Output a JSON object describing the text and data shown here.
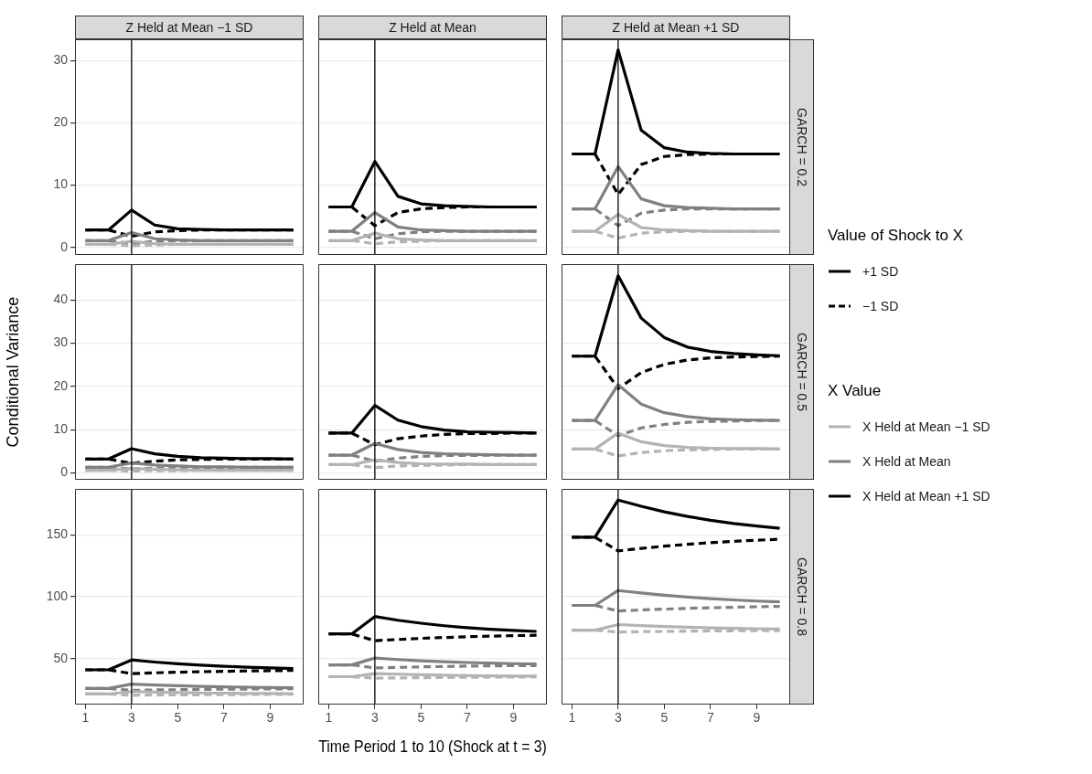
{
  "chart_data": [
    {
      "type": "line",
      "title": "Z Held at Mean −1 SD",
      "x": [
        1,
        2,
        3,
        4,
        5,
        6,
        7,
        8,
        9,
        10
      ],
      "xlim": [
        0.55,
        10.45
      ],
      "xticks": [
        1,
        3,
        5,
        7,
        9
      ],
      "ylim": [
        -1.2,
        33.4
      ],
      "yticks": [
        0,
        10,
        20,
        30
      ],
      "grid": "y",
      "tick_labels": "y",
      "ref_lines": [
        {
          "axis": "x",
          "value": 3
        }
      ],
      "series": [
        {
          "color": "#b3b3b3",
          "line_style": "solid",
          "values": [
            0.5,
            0.5,
            1.0,
            0.6,
            0.5,
            0.5,
            0.5,
            0.5,
            0.5,
            0.5
          ]
        },
        {
          "color": "#b3b3b3",
          "line_style": "dashed",
          "values": [
            0.5,
            0.5,
            0.3,
            0.4,
            0.5,
            0.5,
            0.5,
            0.5,
            0.5,
            0.5
          ]
        },
        {
          "color": "#808080",
          "line_style": "solid",
          "values": [
            1.1,
            1.1,
            2.4,
            1.4,
            1.2,
            1.1,
            1.1,
            1.1,
            1.1,
            1.1
          ]
        },
        {
          "color": "#808080",
          "line_style": "dashed",
          "values": [
            1.1,
            1.1,
            0.6,
            1.0,
            1.1,
            1.1,
            1.1,
            1.1,
            1.1,
            1.1
          ]
        },
        {
          "color": "#000000",
          "line_style": "solid",
          "values": [
            2.8,
            2.8,
            6.0,
            3.6,
            3.0,
            2.9,
            2.8,
            2.8,
            2.8,
            2.8
          ]
        },
        {
          "color": "#000000",
          "line_style": "dashed",
          "values": [
            2.8,
            2.8,
            1.8,
            2.5,
            2.7,
            2.8,
            2.8,
            2.8,
            2.8,
            2.8
          ]
        }
      ]
    },
    {
      "type": "line",
      "title": "Z Held at Mean",
      "x": [
        1,
        2,
        3,
        4,
        5,
        6,
        7,
        8,
        9,
        10
      ],
      "xlim": [
        0.55,
        10.45
      ],
      "xticks": [
        1,
        3,
        5,
        7,
        9
      ],
      "ylim": [
        -1.2,
        33.4
      ],
      "yticks": [
        0,
        10,
        20,
        30
      ],
      "grid": "y",
      "tick_labels": false,
      "ref_lines": [
        {
          "axis": "x",
          "value": 3
        }
      ],
      "series": [
        {
          "color": "#b3b3b3",
          "line_style": "solid",
          "values": [
            1.1,
            1.1,
            2.3,
            1.4,
            1.2,
            1.1,
            1.1,
            1.1,
            1.1,
            1.1
          ]
        },
        {
          "color": "#b3b3b3",
          "line_style": "dashed",
          "values": [
            1.1,
            1.1,
            0.6,
            0.9,
            1.0,
            1.1,
            1.1,
            1.1,
            1.1,
            1.1
          ]
        },
        {
          "color": "#808080",
          "line_style": "solid",
          "values": [
            2.6,
            2.6,
            5.6,
            3.3,
            2.8,
            2.7,
            2.6,
            2.6,
            2.6,
            2.6
          ]
        },
        {
          "color": "#808080",
          "line_style": "dashed",
          "values": [
            2.6,
            2.6,
            1.4,
            2.2,
            2.5,
            2.6,
            2.6,
            2.6,
            2.6,
            2.6
          ]
        },
        {
          "color": "#000000",
          "line_style": "solid",
          "values": [
            6.5,
            6.5,
            13.8,
            8.2,
            7.0,
            6.7,
            6.6,
            6.5,
            6.5,
            6.5
          ]
        },
        {
          "color": "#000000",
          "line_style": "dashed",
          "values": [
            6.5,
            6.5,
            3.5,
            5.6,
            6.2,
            6.4,
            6.5,
            6.5,
            6.5,
            6.5
          ]
        }
      ]
    },
    {
      "type": "line",
      "title": "Z Held at Mean +1 SD",
      "y2label": "GARCH = 0.2",
      "x": [
        1,
        2,
        3,
        4,
        5,
        6,
        7,
        8,
        9,
        10
      ],
      "xlim": [
        0.55,
        10.45
      ],
      "xticks": [
        1,
        3,
        5,
        7,
        9
      ],
      "ylim": [
        -1.2,
        33.4
      ],
      "yticks": [
        0,
        10,
        20,
        30
      ],
      "grid": "y",
      "tick_labels": false,
      "ref_lines": [
        {
          "axis": "x",
          "value": 3
        }
      ],
      "series": [
        {
          "color": "#b3b3b3",
          "line_style": "solid",
          "values": [
            2.6,
            2.6,
            5.3,
            3.2,
            2.8,
            2.7,
            2.6,
            2.6,
            2.6,
            2.6
          ]
        },
        {
          "color": "#b3b3b3",
          "line_style": "dashed",
          "values": [
            2.6,
            2.6,
            1.5,
            2.3,
            2.5,
            2.6,
            2.6,
            2.6,
            2.6,
            2.6
          ]
        },
        {
          "color": "#808080",
          "line_style": "solid",
          "values": [
            6.2,
            6.2,
            13,
            7.8,
            6.7,
            6.4,
            6.3,
            6.2,
            6.2,
            6.2
          ]
        },
        {
          "color": "#808080",
          "line_style": "dashed",
          "values": [
            6.2,
            6.2,
            3.5,
            5.5,
            6.0,
            6.2,
            6.2,
            6.2,
            6.2,
            6.2
          ]
        },
        {
          "color": "#000000",
          "line_style": "solid",
          "values": [
            15,
            15,
            31.7,
            18.8,
            16.0,
            15.3,
            15.1,
            15,
            15,
            15
          ]
        },
        {
          "color": "#000000",
          "line_style": "dashed",
          "values": [
            15,
            15,
            8.5,
            13.3,
            14.6,
            14.9,
            15,
            15,
            15,
            15
          ]
        }
      ]
    },
    {
      "type": "line",
      "ylabel": "Conditional Variance",
      "x": [
        1,
        2,
        3,
        4,
        5,
        6,
        7,
        8,
        9,
        10
      ],
      "xlim": [
        0.55,
        10.45
      ],
      "xticks": [
        1,
        3,
        5,
        7,
        9
      ],
      "ylim": [
        -1.6,
        48.3
      ],
      "yticks": [
        0,
        10,
        20,
        30,
        40
      ],
      "grid": "y",
      "tick_labels": "y",
      "ref_lines": [
        {
          "axis": "x",
          "value": 3
        }
      ],
      "series": [
        {
          "color": "#b3b3b3",
          "line_style": "solid",
          "values": [
            0.6,
            0.6,
            1.0,
            0.8,
            0.7,
            0.6,
            0.6,
            0.6,
            0.6,
            0.6
          ]
        },
        {
          "color": "#b3b3b3",
          "line_style": "dashed",
          "values": [
            0.6,
            0.6,
            0.4,
            0.5,
            0.5,
            0.6,
            0.6,
            0.6,
            0.6,
            0.6
          ]
        },
        {
          "color": "#808080",
          "line_style": "solid",
          "values": [
            1.3,
            1.3,
            2.3,
            1.8,
            1.6,
            1.4,
            1.4,
            1.3,
            1.3,
            1.3
          ]
        },
        {
          "color": "#808080",
          "line_style": "dashed",
          "values": [
            1.3,
            1.3,
            0.9,
            1.1,
            1.2,
            1.3,
            1.3,
            1.3,
            1.3,
            1.3
          ]
        },
        {
          "color": "#000000",
          "line_style": "solid",
          "values": [
            3.2,
            3.2,
            5.6,
            4.4,
            3.8,
            3.5,
            3.4,
            3.3,
            3.3,
            3.2
          ]
        },
        {
          "color": "#000000",
          "line_style": "dashed",
          "values": [
            3.2,
            3.2,
            2.2,
            2.7,
            3.0,
            3.1,
            3.2,
            3.2,
            3.2,
            3.2
          ]
        }
      ]
    },
    {
      "type": "line",
      "x": [
        1,
        2,
        3,
        4,
        5,
        6,
        7,
        8,
        9,
        10
      ],
      "xlim": [
        0.55,
        10.45
      ],
      "xticks": [
        1,
        3,
        5,
        7,
        9
      ],
      "ylim": [
        -1.6,
        48.3
      ],
      "yticks": [
        0,
        10,
        20,
        30,
        40
      ],
      "grid": "y",
      "tick_labels": false,
      "ref_lines": [
        {
          "axis": "x",
          "value": 3
        }
      ],
      "series": [
        {
          "color": "#b3b3b3",
          "line_style": "solid",
          "values": [
            1.9,
            1.9,
            3.0,
            2.4,
            2.1,
            2.0,
            2.0,
            1.9,
            1.9,
            1.9
          ]
        },
        {
          "color": "#b3b3b3",
          "line_style": "dashed",
          "values": [
            1.9,
            1.9,
            1.2,
            1.6,
            1.7,
            1.8,
            1.9,
            1.9,
            1.9,
            1.9
          ]
        },
        {
          "color": "#808080",
          "line_style": "solid",
          "values": [
            4.1,
            4.1,
            6.8,
            5.4,
            4.7,
            4.4,
            4.3,
            4.2,
            4.1,
            4.1
          ]
        },
        {
          "color": "#808080",
          "line_style": "dashed",
          "values": [
            4.1,
            4.1,
            2.7,
            3.4,
            3.8,
            4.0,
            4.0,
            4.1,
            4.1,
            4.1
          ]
        },
        {
          "color": "#000000",
          "line_style": "solid",
          "values": [
            9.2,
            9.2,
            15.6,
            12.2,
            10.7,
            9.9,
            9.5,
            9.4,
            9.3,
            9.2
          ]
        },
        {
          "color": "#000000",
          "line_style": "dashed",
          "values": [
            9.2,
            9.2,
            6.5,
            7.9,
            8.5,
            8.9,
            9.1,
            9.1,
            9.2,
            9.2
          ]
        }
      ]
    },
    {
      "type": "line",
      "y2label": "GARCH = 0.5",
      "x": [
        1,
        2,
        3,
        4,
        5,
        6,
        7,
        8,
        9,
        10
      ],
      "xlim": [
        0.55,
        10.45
      ],
      "xticks": [
        1,
        3,
        5,
        7,
        9
      ],
      "ylim": [
        -1.6,
        48.3
      ],
      "yticks": [
        0,
        10,
        20,
        30,
        40
      ],
      "grid": "y",
      "tick_labels": false,
      "ref_lines": [
        {
          "axis": "x",
          "value": 3
        }
      ],
      "series": [
        {
          "color": "#b3b3b3",
          "line_style": "solid",
          "values": [
            5.5,
            5.5,
            9.2,
            7.2,
            6.3,
            5.9,
            5.7,
            5.6,
            5.6,
            5.5
          ]
        },
        {
          "color": "#b3b3b3",
          "line_style": "dashed",
          "values": [
            5.5,
            5.5,
            3.9,
            4.7,
            5.1,
            5.3,
            5.4,
            5.5,
            5.5,
            5.5
          ]
        },
        {
          "color": "#808080",
          "line_style": "solid",
          "values": [
            12.1,
            12.1,
            20.4,
            15.9,
            13.9,
            13.0,
            12.5,
            12.3,
            12.2,
            12.1
          ]
        },
        {
          "color": "#808080",
          "line_style": "dashed",
          "values": [
            12.1,
            12.1,
            8.6,
            10.4,
            11.2,
            11.7,
            11.9,
            12.0,
            12.1,
            12.1
          ]
        },
        {
          "color": "#000000",
          "line_style": "solid",
          "values": [
            27,
            27,
            45.6,
            35.8,
            31.3,
            29.1,
            28.1,
            27.6,
            27.3,
            27.1
          ]
        },
        {
          "color": "#000000",
          "line_style": "dashed",
          "values": [
            27,
            27,
            19.5,
            23.2,
            25.1,
            26.1,
            26.6,
            26.8,
            26.9,
            27
          ]
        }
      ]
    },
    {
      "type": "line",
      "x": [
        1,
        2,
        3,
        4,
        5,
        6,
        7,
        8,
        9,
        10
      ],
      "xlim": [
        0.55,
        10.45
      ],
      "xticks": [
        1,
        3,
        5,
        7,
        9
      ],
      "ylim": [
        13,
        187
      ],
      "yticks": [
        50,
        100,
        150
      ],
      "grid": "y",
      "ref_lines": [
        {
          "axis": "x",
          "value": 3
        }
      ],
      "series": [
        {
          "color": "#b3b3b3",
          "line_style": "solid",
          "values": [
            21.5,
            21.5,
            23.5,
            23,
            22.7,
            22.4,
            22.2,
            22,
            21.9,
            21.8
          ]
        },
        {
          "color": "#b3b3b3",
          "line_style": "dashed",
          "values": [
            21.5,
            21.5,
            20.5,
            20.7,
            20.8,
            20.9,
            21,
            21.1,
            21.2,
            21.3
          ]
        },
        {
          "color": "#808080",
          "line_style": "solid",
          "values": [
            26,
            26,
            29.5,
            28.8,
            28.2,
            27.7,
            27.3,
            27,
            26.8,
            26.6
          ]
        },
        {
          "color": "#808080",
          "line_style": "dashed",
          "values": [
            26,
            26,
            24.5,
            24.8,
            25,
            25.2,
            25.4,
            25.5,
            25.6,
            25.7
          ]
        },
        {
          "color": "#000000",
          "line_style": "solid",
          "values": [
            41,
            41,
            49,
            47.3,
            45.9,
            44.8,
            43.9,
            43.2,
            42.6,
            42.1
          ]
        },
        {
          "color": "#000000",
          "line_style": "dashed",
          "values": [
            41,
            41,
            38,
            38.6,
            39.1,
            39.5,
            39.8,
            40.1,
            40.3,
            40.5
          ]
        }
      ]
    },
    {
      "type": "line",
      "xlabel": "Time Period 1 to 10 (Shock at t = 3)",
      "x": [
        1,
        2,
        3,
        4,
        5,
        6,
        7,
        8,
        9,
        10
      ],
      "xlim": [
        0.55,
        10.45
      ],
      "xticks": [
        1,
        3,
        5,
        7,
        9
      ],
      "ylim": [
        13,
        187
      ],
      "yticks": [
        50,
        100,
        150
      ],
      "grid": "y",
      "tick_labels": "x",
      "ref_lines": [
        {
          "axis": "x",
          "value": 3
        }
      ],
      "series": [
        {
          "color": "#b3b3b3",
          "line_style": "solid",
          "values": [
            35.5,
            35.5,
            38,
            37.5,
            37.1,
            36.7,
            36.4,
            36.2,
            36,
            35.9
          ]
        },
        {
          "color": "#b3b3b3",
          "line_style": "dashed",
          "values": [
            35.5,
            35.5,
            34.3,
            34.5,
            34.7,
            34.9,
            35,
            35.1,
            35.2,
            35.3
          ]
        },
        {
          "color": "#808080",
          "line_style": "solid",
          "values": [
            45,
            45,
            50.5,
            49.3,
            48.3,
            47.5,
            46.9,
            46.4,
            46,
            45.7
          ]
        },
        {
          "color": "#808080",
          "line_style": "dashed",
          "values": [
            45,
            45,
            42.5,
            43,
            43.4,
            43.7,
            44,
            44.2,
            44.4,
            44.5
          ]
        },
        {
          "color": "#000000",
          "line_style": "solid",
          "values": [
            70,
            70,
            84,
            81,
            78.6,
            76.6,
            75,
            73.8,
            72.8,
            72
          ]
        },
        {
          "color": "#000000",
          "line_style": "dashed",
          "values": [
            70,
            70,
            64.5,
            65.5,
            66.4,
            67.1,
            67.7,
            68.2,
            68.6,
            68.9
          ]
        }
      ]
    },
    {
      "type": "line",
      "y2label": "GARCH = 0.8",
      "x": [
        1,
        2,
        3,
        4,
        5,
        6,
        7,
        8,
        9,
        10
      ],
      "xlim": [
        0.55,
        10.45
      ],
      "xticks": [
        1,
        3,
        5,
        7,
        9
      ],
      "ylim": [
        13,
        187
      ],
      "yticks": [
        50,
        100,
        150
      ],
      "grid": "y",
      "tick_labels": "x",
      "ref_lines": [
        {
          "axis": "x",
          "value": 3
        }
      ],
      "series": [
        {
          "color": "#b3b3b3",
          "line_style": "solid",
          "values": [
            73,
            73,
            77.5,
            76.7,
            76,
            75.4,
            74.9,
            74.5,
            74.2,
            73.9
          ]
        },
        {
          "color": "#b3b3b3",
          "line_style": "dashed",
          "values": [
            73,
            73,
            71.5,
            71.8,
            72,
            72.2,
            72.4,
            72.5,
            72.6,
            72.7
          ]
        },
        {
          "color": "#808080",
          "line_style": "solid",
          "values": [
            93,
            93,
            105,
            103,
            101.2,
            99.7,
            98.4,
            97.4,
            96.5,
            95.8
          ]
        },
        {
          "color": "#808080",
          "line_style": "dashed",
          "values": [
            93,
            93,
            88.5,
            89.3,
            90,
            90.6,
            91.1,
            91.5,
            91.9,
            92.2
          ]
        },
        {
          "color": "#000000",
          "line_style": "solid",
          "values": [
            148,
            148,
            178,
            173,
            168.5,
            164.8,
            161.7,
            159.1,
            157,
            155.2
          ]
        },
        {
          "color": "#000000",
          "line_style": "dashed",
          "values": [
            148,
            148,
            137,
            139,
            140.8,
            142.3,
            143.6,
            144.7,
            145.6,
            146.4
          ]
        }
      ]
    },
    {
      "type": "other",
      "legend_title": "Value of Shock to X",
      "annotations": [
        "+1 SD",
        "−1 SD"
      ]
    },
    {
      "type": "other",
      "legend_title": "X Value",
      "annotations": [
        "X Held at Mean −1 SD",
        "X Held at Mean",
        "X Held at Mean +1 SD"
      ]
    }
  ]
}
